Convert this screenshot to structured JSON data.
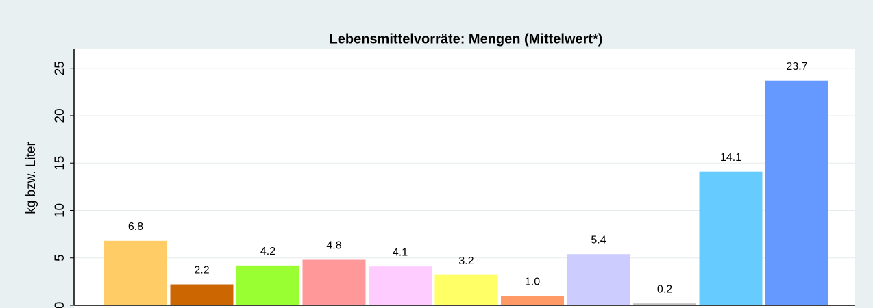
{
  "chart_data": {
    "type": "bar",
    "title": "Lebensmittelvorräte: Mengen (Mittelwert*)",
    "ylabel": "kg bzw. Liter",
    "values": [
      6.8,
      2.2,
      4.2,
      4.8,
      4.1,
      3.2,
      1.0,
      5.4,
      0.2,
      14.1,
      23.7
    ],
    "value_labels": [
      "6.8",
      "2.2",
      "4.2",
      "4.8",
      "4.1",
      "3.2",
      "1.0",
      "5.4",
      "0.2",
      "14.1",
      "23.7"
    ],
    "colors": [
      "#ffcc66",
      "#cc6600",
      "#99ff33",
      "#ff9999",
      "#ffccff",
      "#ffff66",
      "#ff9966",
      "#ccccff",
      "#c0c0c0",
      "#66ccff",
      "#6699ff"
    ],
    "ylim": [
      0,
      27
    ],
    "yticks": [
      0,
      5,
      10,
      15,
      20,
      25
    ],
    "grid": true
  }
}
